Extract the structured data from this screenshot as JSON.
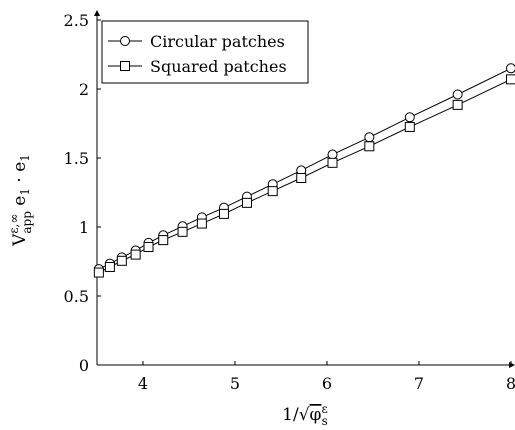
{
  "chart_data": {
    "type": "line",
    "title": "",
    "xlabel": "1/√φᵉₛ",
    "ylabel": "Vᴬᴾᴾ e₁ · e₁",
    "xlim": [
      3.5,
      8
    ],
    "ylim": [
      0,
      2.5
    ],
    "xticks": [
      4,
      5,
      6,
      7,
      8
    ],
    "yticks": [
      0,
      0.5,
      1,
      1.5,
      2,
      2.5
    ],
    "xtick_labels": [
      "4",
      "5",
      "6",
      "7",
      "8"
    ],
    "ytick_labels": [
      "0",
      "0.5",
      "1",
      "1.5",
      "2",
      "2.5"
    ],
    "grid": false,
    "legend_position": "top-left",
    "series": [
      {
        "name": "Circular patches",
        "marker": "circle",
        "x": [
          3.52,
          3.64,
          3.77,
          3.92,
          4.06,
          4.22,
          4.43,
          4.64,
          4.88,
          5.13,
          5.41,
          5.72,
          6.06,
          6.46,
          6.9,
          7.42,
          8.0
        ],
        "y": [
          0.695,
          0.735,
          0.78,
          0.83,
          0.885,
          0.94,
          1.005,
          1.07,
          1.14,
          1.22,
          1.31,
          1.41,
          1.525,
          1.65,
          1.795,
          1.96,
          2.15
        ]
      },
      {
        "name": "Squared patches",
        "marker": "square",
        "x": [
          3.52,
          3.64,
          3.77,
          3.92,
          4.06,
          4.22,
          4.43,
          4.64,
          4.88,
          5.13,
          5.41,
          5.72,
          6.06,
          6.46,
          6.9,
          7.42,
          8.0
        ],
        "y": [
          0.67,
          0.71,
          0.755,
          0.8,
          0.855,
          0.905,
          0.965,
          1.025,
          1.095,
          1.175,
          1.26,
          1.355,
          1.465,
          1.585,
          1.725,
          1.885,
          2.07
        ]
      }
    ]
  }
}
